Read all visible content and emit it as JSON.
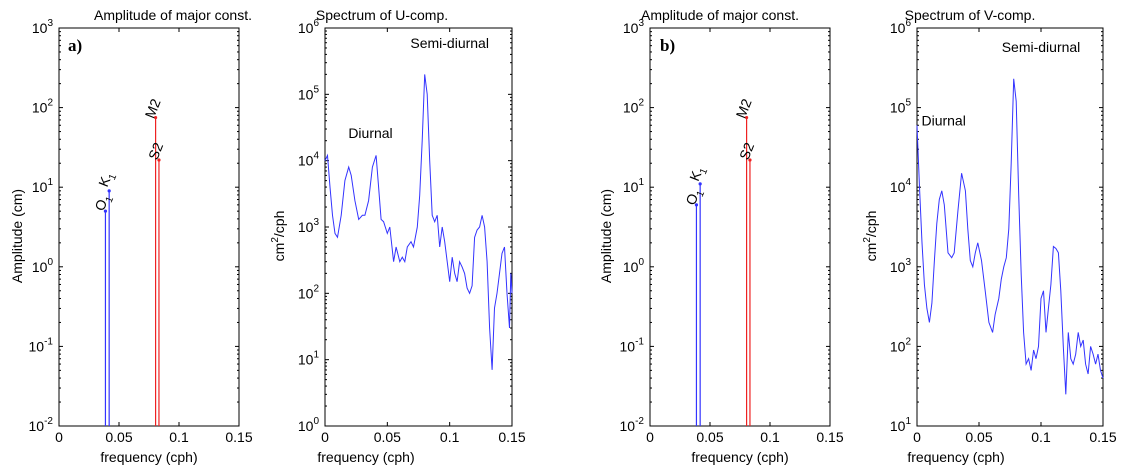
{
  "chart_data": [
    {
      "type": "stem",
      "panel_label": "a)",
      "title": "Amplitude of major const.",
      "xlabel": "frequency (cph)",
      "ylabel": "Amplitude (cm)",
      "xlim": [
        0,
        0.15
      ],
      "ylim": [
        0.01,
        1000
      ],
      "yscale": "log",
      "xticks": [
        "0",
        "0.05",
        "0.1",
        "0.15"
      ],
      "yticks": [
        {
          "base": "10",
          "exp": "-2"
        },
        {
          "base": "10",
          "exp": "-1"
        },
        {
          "base": "10",
          "exp": "0"
        },
        {
          "base": "10",
          "exp": "1"
        },
        {
          "base": "10",
          "exp": "2"
        },
        {
          "base": "10",
          "exp": "3"
        }
      ],
      "series": [
        {
          "name": "O1",
          "color": "#3333ff",
          "x": 0.0387,
          "y": 5
        },
        {
          "name": "K1",
          "color": "#3333ff",
          "x": 0.0418,
          "y": 9
        },
        {
          "name": "M2",
          "color": "#ee2222",
          "x": 0.0805,
          "y": 75
        },
        {
          "name": "S2",
          "color": "#ee2222",
          "x": 0.0833,
          "y": 22
        }
      ],
      "labels": [
        {
          "text": "O",
          "sub": "1",
          "x": 0.0387,
          "y": 5.5
        },
        {
          "text": "K",
          "sub": "1",
          "x": 0.0418,
          "y": 11
        },
        {
          "text": "M2",
          "sub": "",
          "x": 0.0805,
          "y": 80
        },
        {
          "text": "S2",
          "sub": "",
          "x": 0.0833,
          "y": 24
        }
      ]
    },
    {
      "type": "line",
      "title": "Spectrum of U-comp.",
      "xlabel": "frequency (cph)",
      "ylabel": {
        "base": "cm",
        "exp": "2",
        "rest": "/cph"
      },
      "xlim": [
        0,
        0.15
      ],
      "ylim": [
        1,
        1000000
      ],
      "yscale": "log",
      "xticks": [
        "0",
        "0.05",
        "0.1",
        "0.15"
      ],
      "yticks": [
        {
          "base": "10",
          "exp": "0"
        },
        {
          "base": "10",
          "exp": "1"
        },
        {
          "base": "10",
          "exp": "2"
        },
        {
          "base": "10",
          "exp": "3"
        },
        {
          "base": "10",
          "exp": "4"
        },
        {
          "base": "10",
          "exp": "5"
        },
        {
          "base": "10",
          "exp": "6"
        }
      ],
      "color": "#3333ff",
      "annotations": [
        {
          "text": "Semi-diurnal",
          "x": 0.1,
          "y": 500000
        },
        {
          "text": "Diurnal",
          "x": 0.0365,
          "y": 22000
        }
      ],
      "x": [
        0,
        0.002,
        0.004,
        0.006,
        0.008,
        0.01,
        0.013,
        0.016,
        0.019,
        0.021,
        0.024,
        0.027,
        0.03,
        0.032,
        0.035,
        0.038,
        0.041,
        0.043,
        0.045,
        0.047,
        0.05,
        0.052,
        0.055,
        0.057,
        0.06,
        0.062,
        0.064,
        0.066,
        0.069,
        0.071,
        0.074,
        0.076,
        0.078,
        0.08,
        0.082,
        0.084,
        0.086,
        0.088,
        0.09,
        0.092,
        0.094,
        0.096,
        0.098,
        0.1,
        0.102,
        0.104,
        0.106,
        0.108,
        0.11,
        0.112,
        0.114,
        0.116,
        0.118,
        0.12,
        0.122,
        0.124,
        0.126,
        0.128,
        0.13,
        0.132,
        0.134,
        0.136,
        0.138,
        0.14,
        0.142,
        0.144,
        0.146,
        0.148,
        0.149,
        0.15
      ],
      "y": [
        10000,
        12000,
        4000,
        1500,
        800,
        700,
        1500,
        5000,
        8000,
        6000,
        2500,
        1300,
        1500,
        1500,
        2500,
        8000,
        12000,
        4000,
        1300,
        1200,
        800,
        1000,
        300,
        500,
        300,
        350,
        300,
        500,
        600,
        500,
        1000,
        3000,
        20000,
        200000,
        100000,
        10000,
        1500,
        1200,
        1500,
        500,
        1000,
        600,
        300,
        150,
        350,
        200,
        150,
        300,
        250,
        200,
        120,
        100,
        130,
        700,
        900,
        1000,
        1500,
        1000,
        300,
        30,
        7,
        60,
        100,
        200,
        400,
        500,
        100,
        30,
        200,
        100
      ]
    },
    {
      "type": "stem",
      "panel_label": "b)",
      "title": "Amplitude of major const.",
      "xlabel": "frequency (cph)",
      "ylabel": "Amplitude (cm)",
      "xlim": [
        0,
        0.15
      ],
      "ylim": [
        0.01,
        1000
      ],
      "yscale": "log",
      "xticks": [
        "0",
        "0.05",
        "0.1",
        "0.15"
      ],
      "yticks": [
        {
          "base": "10",
          "exp": "-2"
        },
        {
          "base": "10",
          "exp": "-1"
        },
        {
          "base": "10",
          "exp": "0"
        },
        {
          "base": "10",
          "exp": "1"
        },
        {
          "base": "10",
          "exp": "2"
        },
        {
          "base": "10",
          "exp": "3"
        }
      ],
      "series": [
        {
          "name": "O1",
          "color": "#3333ff",
          "x": 0.0387,
          "y": 6
        },
        {
          "name": "K1",
          "color": "#3333ff",
          "x": 0.0418,
          "y": 11
        },
        {
          "name": "M2",
          "color": "#ee2222",
          "x": 0.0805,
          "y": 75
        },
        {
          "name": "S2",
          "color": "#ee2222",
          "x": 0.0833,
          "y": 22
        }
      ],
      "labels": [
        {
          "text": "O",
          "sub": "1",
          "x": 0.0387,
          "y": 6.5
        },
        {
          "text": "K",
          "sub": "1",
          "x": 0.0418,
          "y": 13
        },
        {
          "text": "M2",
          "sub": "",
          "x": 0.0805,
          "y": 80
        },
        {
          "text": "S2",
          "sub": "",
          "x": 0.0833,
          "y": 24
        }
      ]
    },
    {
      "type": "line",
      "title": "Spectrum of V-comp.",
      "xlabel": "frequency (cph)",
      "ylabel": {
        "base": "cm",
        "exp": "2",
        "rest": "/cph"
      },
      "xlim": [
        0,
        0.15
      ],
      "ylim": [
        10,
        1000000
      ],
      "yscale": "log",
      "xticks": [
        "0",
        "0.05",
        "0.1",
        "0.15"
      ],
      "yticks": [
        {
          "base": "10",
          "exp": "1"
        },
        {
          "base": "10",
          "exp": "2"
        },
        {
          "base": "10",
          "exp": "3"
        },
        {
          "base": "10",
          "exp": "4"
        },
        {
          "base": "10",
          "exp": "5"
        },
        {
          "base": "10",
          "exp": "6"
        }
      ],
      "color": "#3333ff",
      "annotations": [
        {
          "text": "Semi-diurnal",
          "x": 0.1,
          "y": 500000
        },
        {
          "text": "Diurnal",
          "x": 0.0215,
          "y": 60000
        }
      ],
      "x": [
        0,
        0.002,
        0.004,
        0.006,
        0.008,
        0.01,
        0.012,
        0.014,
        0.016,
        0.018,
        0.02,
        0.022,
        0.025,
        0.028,
        0.03,
        0.033,
        0.036,
        0.039,
        0.041,
        0.043,
        0.045,
        0.047,
        0.049,
        0.052,
        0.055,
        0.058,
        0.061,
        0.063,
        0.066,
        0.068,
        0.07,
        0.072,
        0.074,
        0.076,
        0.078,
        0.08,
        0.082,
        0.084,
        0.086,
        0.088,
        0.09,
        0.092,
        0.094,
        0.096,
        0.098,
        0.1,
        0.102,
        0.104,
        0.106,
        0.108,
        0.11,
        0.112,
        0.114,
        0.116,
        0.118,
        0.12,
        0.122,
        0.124,
        0.126,
        0.128,
        0.13,
        0.132,
        0.134,
        0.136,
        0.138,
        0.14,
        0.142,
        0.144,
        0.146,
        0.148,
        0.15
      ],
      "y": [
        60000,
        10000,
        2000,
        600,
        300,
        200,
        350,
        1200,
        3500,
        7000,
        9000,
        6000,
        1500,
        1300,
        1500,
        5000,
        15000,
        9000,
        3000,
        1200,
        1000,
        1500,
        2000,
        1200,
        500,
        200,
        150,
        250,
        400,
        700,
        1000,
        1300,
        3000,
        20000,
        230000,
        120000,
        8000,
        800,
        150,
        60,
        70,
        50,
        90,
        70,
        100,
        400,
        500,
        150,
        300,
        600,
        1800,
        1700,
        1500,
        500,
        100,
        25,
        150,
        70,
        60,
        80,
        150,
        100,
        120,
        60,
        45,
        100,
        80,
        60,
        80,
        50,
        40
      ]
    }
  ]
}
